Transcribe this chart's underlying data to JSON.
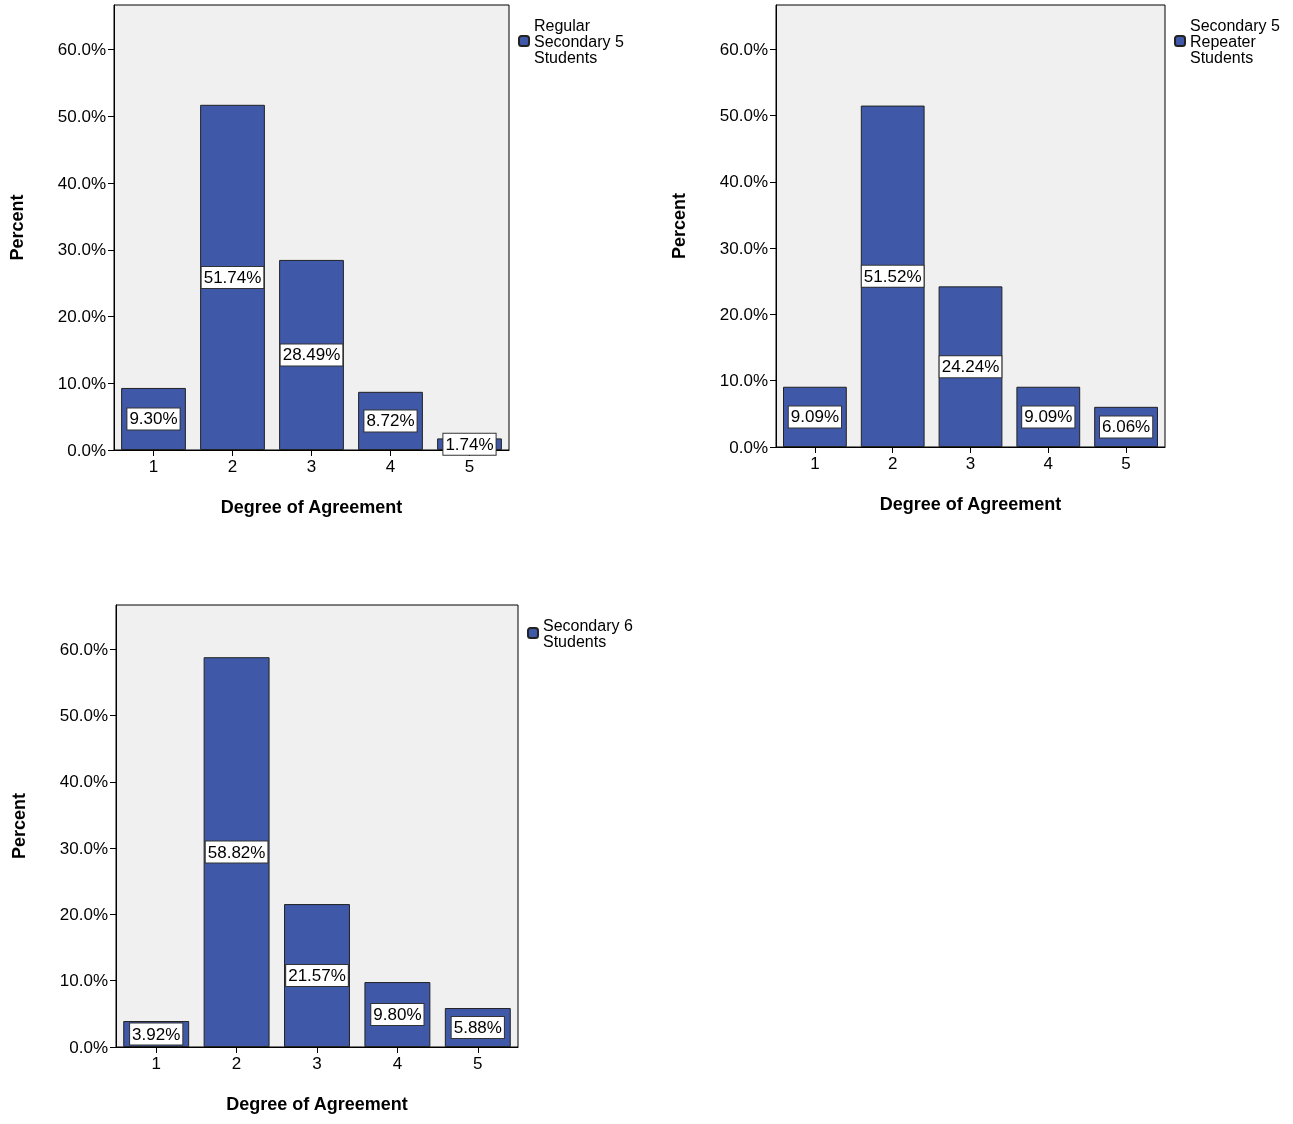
{
  "chart_data": [
    {
      "type": "bar",
      "xlabel": "Degree of Agreement",
      "ylabel": "Percent",
      "categories": [
        "1",
        "2",
        "3",
        "4",
        "5"
      ],
      "legend": "top right",
      "grid": false,
      "series": [
        {
          "name": "Regular Secondary 5 Students",
          "color": "#3f58a8",
          "values": [
            9.3,
            51.74,
            28.49,
            8.72,
            1.74
          ],
          "value_labels": [
            "9.30%",
            "51.74%",
            "28.49%",
            "8.72%",
            "1.74%"
          ]
        }
      ],
      "ylim": [
        0,
        66.7
      ],
      "yticks": [
        {
          "value": 0,
          "label": "0.0%"
        },
        {
          "value": 10,
          "label": "10.0%"
        },
        {
          "value": 20,
          "label": "20.0%"
        },
        {
          "value": 30,
          "label": "30.0%"
        },
        {
          "value": 40,
          "label": "40.0%"
        },
        {
          "value": 50,
          "label": "50.0%"
        },
        {
          "value": 60,
          "label": "60.0%"
        }
      ]
    },
    {
      "type": "bar",
      "xlabel": "Degree of Agreement",
      "ylabel": "Percent",
      "categories": [
        "1",
        "2",
        "3",
        "4",
        "5"
      ],
      "legend": "top right",
      "grid": false,
      "series": [
        {
          "name": "Secondary 5 Repeater Students",
          "color": "#3f58a8",
          "values": [
            9.09,
            51.52,
            24.24,
            9.09,
            6.06
          ],
          "value_labels": [
            "9.09%",
            "51.52%",
            "24.24%",
            "9.09%",
            "6.06%"
          ]
        }
      ],
      "ylim": [
        0,
        66.7
      ],
      "yticks": [
        {
          "value": 0,
          "label": "0.0%"
        },
        {
          "value": 10,
          "label": "10.0%"
        },
        {
          "value": 20,
          "label": "20.0%"
        },
        {
          "value": 30,
          "label": "30.0%"
        },
        {
          "value": 40,
          "label": "40.0%"
        },
        {
          "value": 50,
          "label": "50.0%"
        },
        {
          "value": 60,
          "label": "60.0%"
        }
      ]
    },
    {
      "type": "bar",
      "xlabel": "Degree of Agreement",
      "ylabel": "Percent",
      "categories": [
        "1",
        "2",
        "3",
        "4",
        "5"
      ],
      "legend": "top right",
      "grid": false,
      "series": [
        {
          "name": "Secondary 6 Students",
          "color": "#3f58a8",
          "values": [
            3.92,
            58.82,
            21.57,
            9.8,
            5.88
          ],
          "value_labels": [
            "3.92%",
            "58.82%",
            "21.57%",
            "9.80%",
            "5.88%"
          ]
        }
      ],
      "ylim": [
        0,
        66.7
      ],
      "yticks": [
        {
          "value": 0,
          "label": "0.0%"
        },
        {
          "value": 10,
          "label": "10.0%"
        },
        {
          "value": 20,
          "label": "20.0%"
        },
        {
          "value": 30,
          "label": "30.0%"
        },
        {
          "value": 40,
          "label": "40.0%"
        },
        {
          "value": 50,
          "label": "50.0%"
        },
        {
          "value": 60,
          "label": "60.0%"
        }
      ]
    }
  ]
}
